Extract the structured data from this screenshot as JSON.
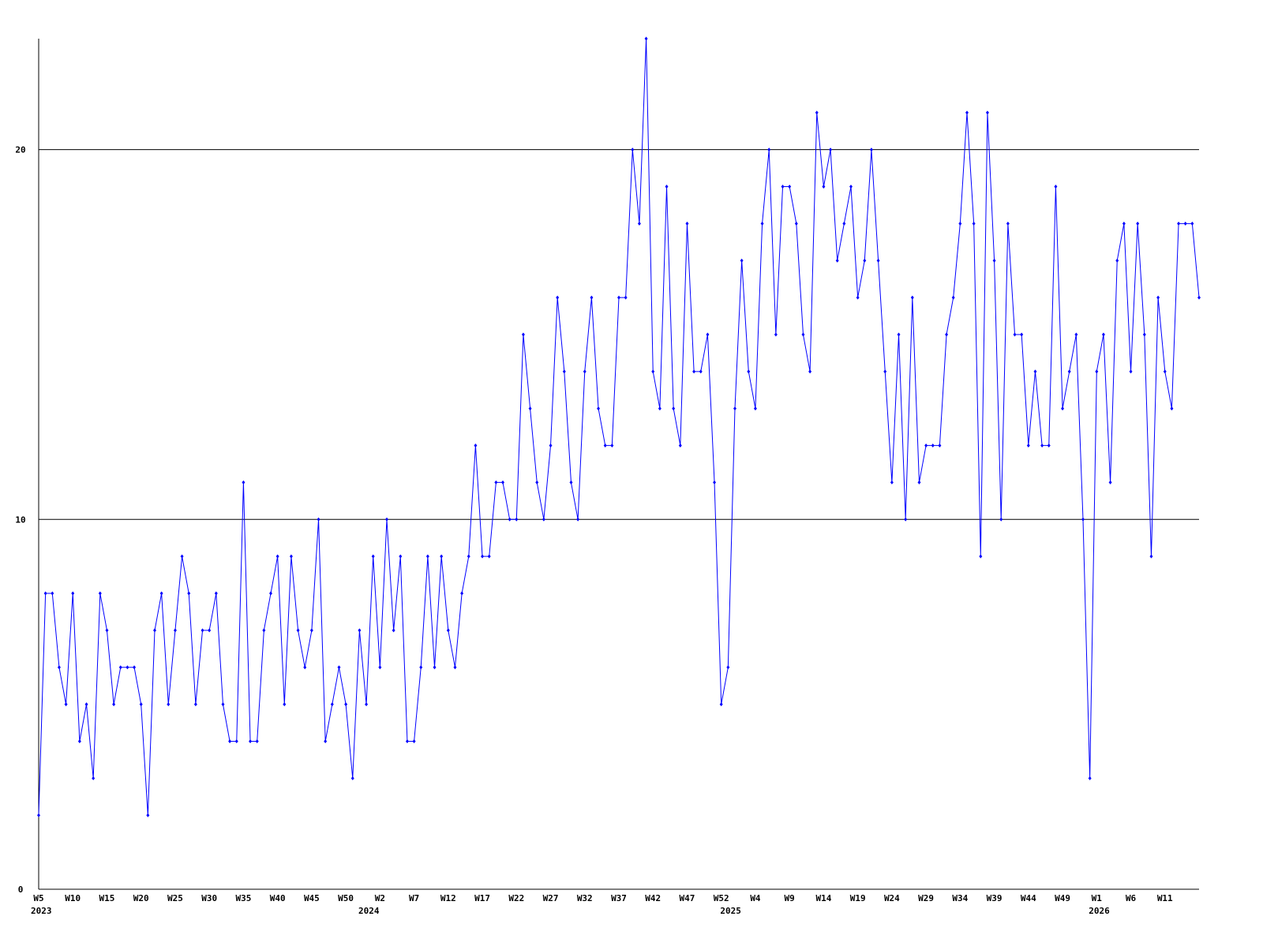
{
  "chart_data": {
    "type": "line",
    "categories": [
      "W5",
      null,
      null,
      null,
      null,
      "W10",
      null,
      null,
      null,
      null,
      "W15",
      null,
      null,
      null,
      null,
      "W20",
      null,
      null,
      null,
      null,
      "W25",
      null,
      null,
      null,
      null,
      "W30",
      null,
      null,
      null,
      null,
      "W35",
      null,
      null,
      null,
      null,
      "W40",
      null,
      null,
      null,
      null,
      "W45",
      null,
      null,
      null,
      null,
      "W50",
      null,
      null,
      null,
      null,
      "W2",
      null,
      null,
      null,
      null,
      "W7",
      null,
      null,
      null,
      null,
      "W12",
      null,
      null,
      null,
      null,
      "W17",
      null,
      null,
      null,
      null,
      "W22",
      null,
      null,
      null,
      null,
      "W27",
      null,
      null,
      null,
      null,
      "W32",
      null,
      null,
      null,
      null,
      "W37",
      null,
      null,
      null,
      null,
      "W42",
      null,
      null,
      null,
      null,
      "W47",
      null,
      null,
      null,
      null,
      "W52",
      null,
      null,
      null,
      null,
      "W4",
      null,
      null,
      null,
      null,
      "W9",
      null,
      null,
      null,
      null,
      "W14",
      null,
      null,
      null,
      null,
      "W19",
      null,
      null,
      null,
      null,
      "W24",
      null,
      null,
      null,
      null,
      "W29",
      null,
      null,
      null,
      null,
      "W34",
      null,
      null,
      null,
      null,
      "W39",
      null,
      null,
      null,
      null,
      "W44",
      null,
      null,
      null,
      null,
      "W49",
      null,
      null,
      null,
      null,
      "W1",
      null,
      null,
      null,
      null,
      "W6",
      null,
      null,
      null,
      null,
      "W11",
      null,
      null,
      null,
      null,
      null
    ],
    "years": [
      "2023",
      null,
      null,
      null,
      null,
      null,
      null,
      null,
      null,
      null,
      null,
      null,
      null,
      null,
      null,
      null,
      null,
      null,
      null,
      null,
      null,
      null,
      null,
      null,
      null,
      null,
      null,
      null,
      null,
      null,
      null,
      null,
      null,
      null,
      null,
      null,
      null,
      null,
      null,
      null,
      null,
      null,
      null,
      null,
      null,
      null,
      null,
      null,
      "2024",
      null,
      null,
      null,
      null,
      null,
      null,
      null,
      null,
      null,
      null,
      null,
      null,
      null,
      null,
      null,
      null,
      null,
      null,
      null,
      null,
      null,
      null,
      null,
      null,
      null,
      null,
      null,
      null,
      null,
      null,
      null,
      null,
      null,
      null,
      null,
      null,
      null,
      null,
      null,
      null,
      null,
      null,
      null,
      null,
      null,
      null,
      null,
      null,
      null,
      null,
      null,
      null,
      "2025",
      null,
      null,
      null,
      null,
      null,
      null,
      null,
      null,
      null,
      null,
      null,
      null,
      null,
      null,
      null,
      null,
      null,
      null,
      null,
      null,
      null,
      null,
      null,
      null,
      null,
      null,
      null,
      null,
      null,
      null,
      null,
      null,
      null,
      null,
      null,
      null,
      null,
      null,
      null,
      null,
      null,
      null,
      null,
      null,
      null,
      null,
      null,
      null,
      null,
      null,
      null,
      null,
      null,
      "2026",
      null,
      null,
      null,
      null,
      null,
      null,
      null,
      null,
      null,
      null,
      null,
      null,
      null,
      null,
      null,
      null
    ],
    "series": [
      {
        "color": "#0000ff",
        "values": [
          2,
          8,
          8,
          6,
          5,
          8,
          4,
          5,
          3,
          8,
          7,
          5,
          6,
          6,
          6,
          5,
          2,
          7,
          8,
          5,
          7,
          9,
          8,
          5,
          7,
          7,
          8,
          5,
          4,
          4,
          11,
          4,
          4,
          7,
          8,
          9,
          5,
          9,
          7,
          6,
          7,
          10,
          4,
          5,
          6,
          5,
          3,
          7,
          5,
          9,
          6,
          10,
          7,
          9,
          4,
          4,
          6,
          9,
          6,
          9,
          7,
          6,
          8,
          9,
          12,
          9,
          9,
          11,
          11,
          10,
          10,
          15,
          13,
          11,
          10,
          12,
          16,
          14,
          11,
          10,
          14,
          16,
          13,
          12,
          12,
          16,
          16,
          20,
          18,
          23,
          14,
          13,
          19,
          13,
          12,
          18,
          14,
          14,
          15,
          11,
          5,
          6,
          13,
          17,
          14,
          13,
          18,
          20,
          15,
          19,
          19,
          18,
          15,
          14,
          21,
          19,
          20,
          17,
          18,
          19,
          16,
          17,
          20,
          17,
          14,
          11,
          15,
          10,
          16,
          11,
          12,
          12,
          12,
          15,
          16,
          18,
          21,
          18,
          9,
          21,
          17,
          10,
          18,
          15,
          15,
          12,
          14,
          12,
          12,
          19,
          13,
          14,
          15,
          10,
          3,
          14,
          15,
          11,
          17,
          18,
          14,
          18,
          15,
          9,
          16,
          14,
          13,
          18,
          18,
          18,
          16
        ]
      }
    ],
    "ylim": [
      0,
      23
    ],
    "yticks": [
      0,
      10,
      20
    ],
    "grid": true
  }
}
